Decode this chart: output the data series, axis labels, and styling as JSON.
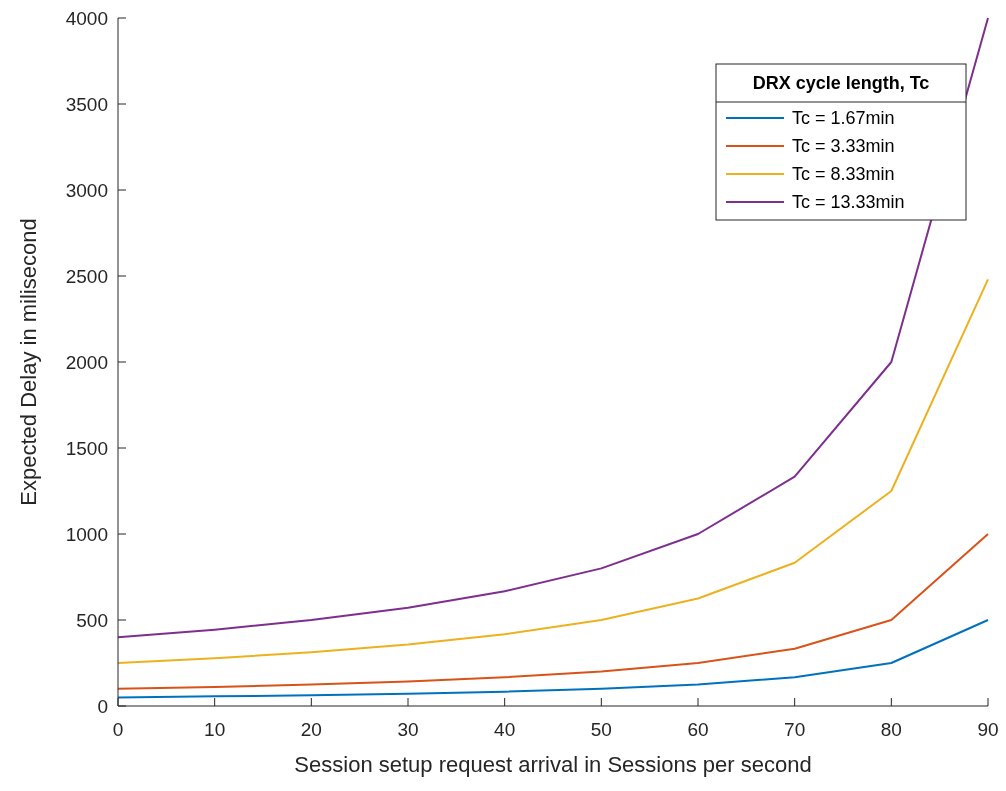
{
  "chart_data": {
    "type": "line",
    "xlabel": "Session setup request arrival in Sessions per second",
    "ylabel": "Expected Delay in milisecond",
    "legend_title": "DRX cycle length, Tc",
    "legend": "top right",
    "grid": false,
    "x": [
      0,
      10,
      20,
      30,
      40,
      50,
      60,
      70,
      80,
      90
    ],
    "xlim": [
      0,
      90
    ],
    "xticks": [
      0,
      10,
      20,
      30,
      40,
      50,
      60,
      70,
      80,
      90
    ],
    "ylim": [
      0,
      4000
    ],
    "yticks": [
      0,
      500,
      1000,
      1500,
      2000,
      2500,
      3000,
      3500,
      4000
    ],
    "series": [
      {
        "name": "Tc = 1.67min",
        "color": "#0072bd",
        "values": [
          50,
          56,
          62,
          71,
          83,
          100,
          125,
          167,
          250,
          500
        ]
      },
      {
        "name": "Tc = 3.33min",
        "color": "#d95319",
        "values": [
          100,
          111,
          125,
          143,
          167,
          200,
          250,
          333,
          500,
          1000
        ]
      },
      {
        "name": "Tc = 8.33min",
        "color": "#edb120",
        "values": [
          250,
          278,
          312,
          357,
          417,
          500,
          625,
          833,
          1250,
          2480
        ]
      },
      {
        "name": "Tc = 13.33min",
        "color": "#7e2f8e",
        "values": [
          400,
          444,
          500,
          571,
          667,
          800,
          1000,
          1333,
          2000,
          4000
        ]
      }
    ]
  }
}
